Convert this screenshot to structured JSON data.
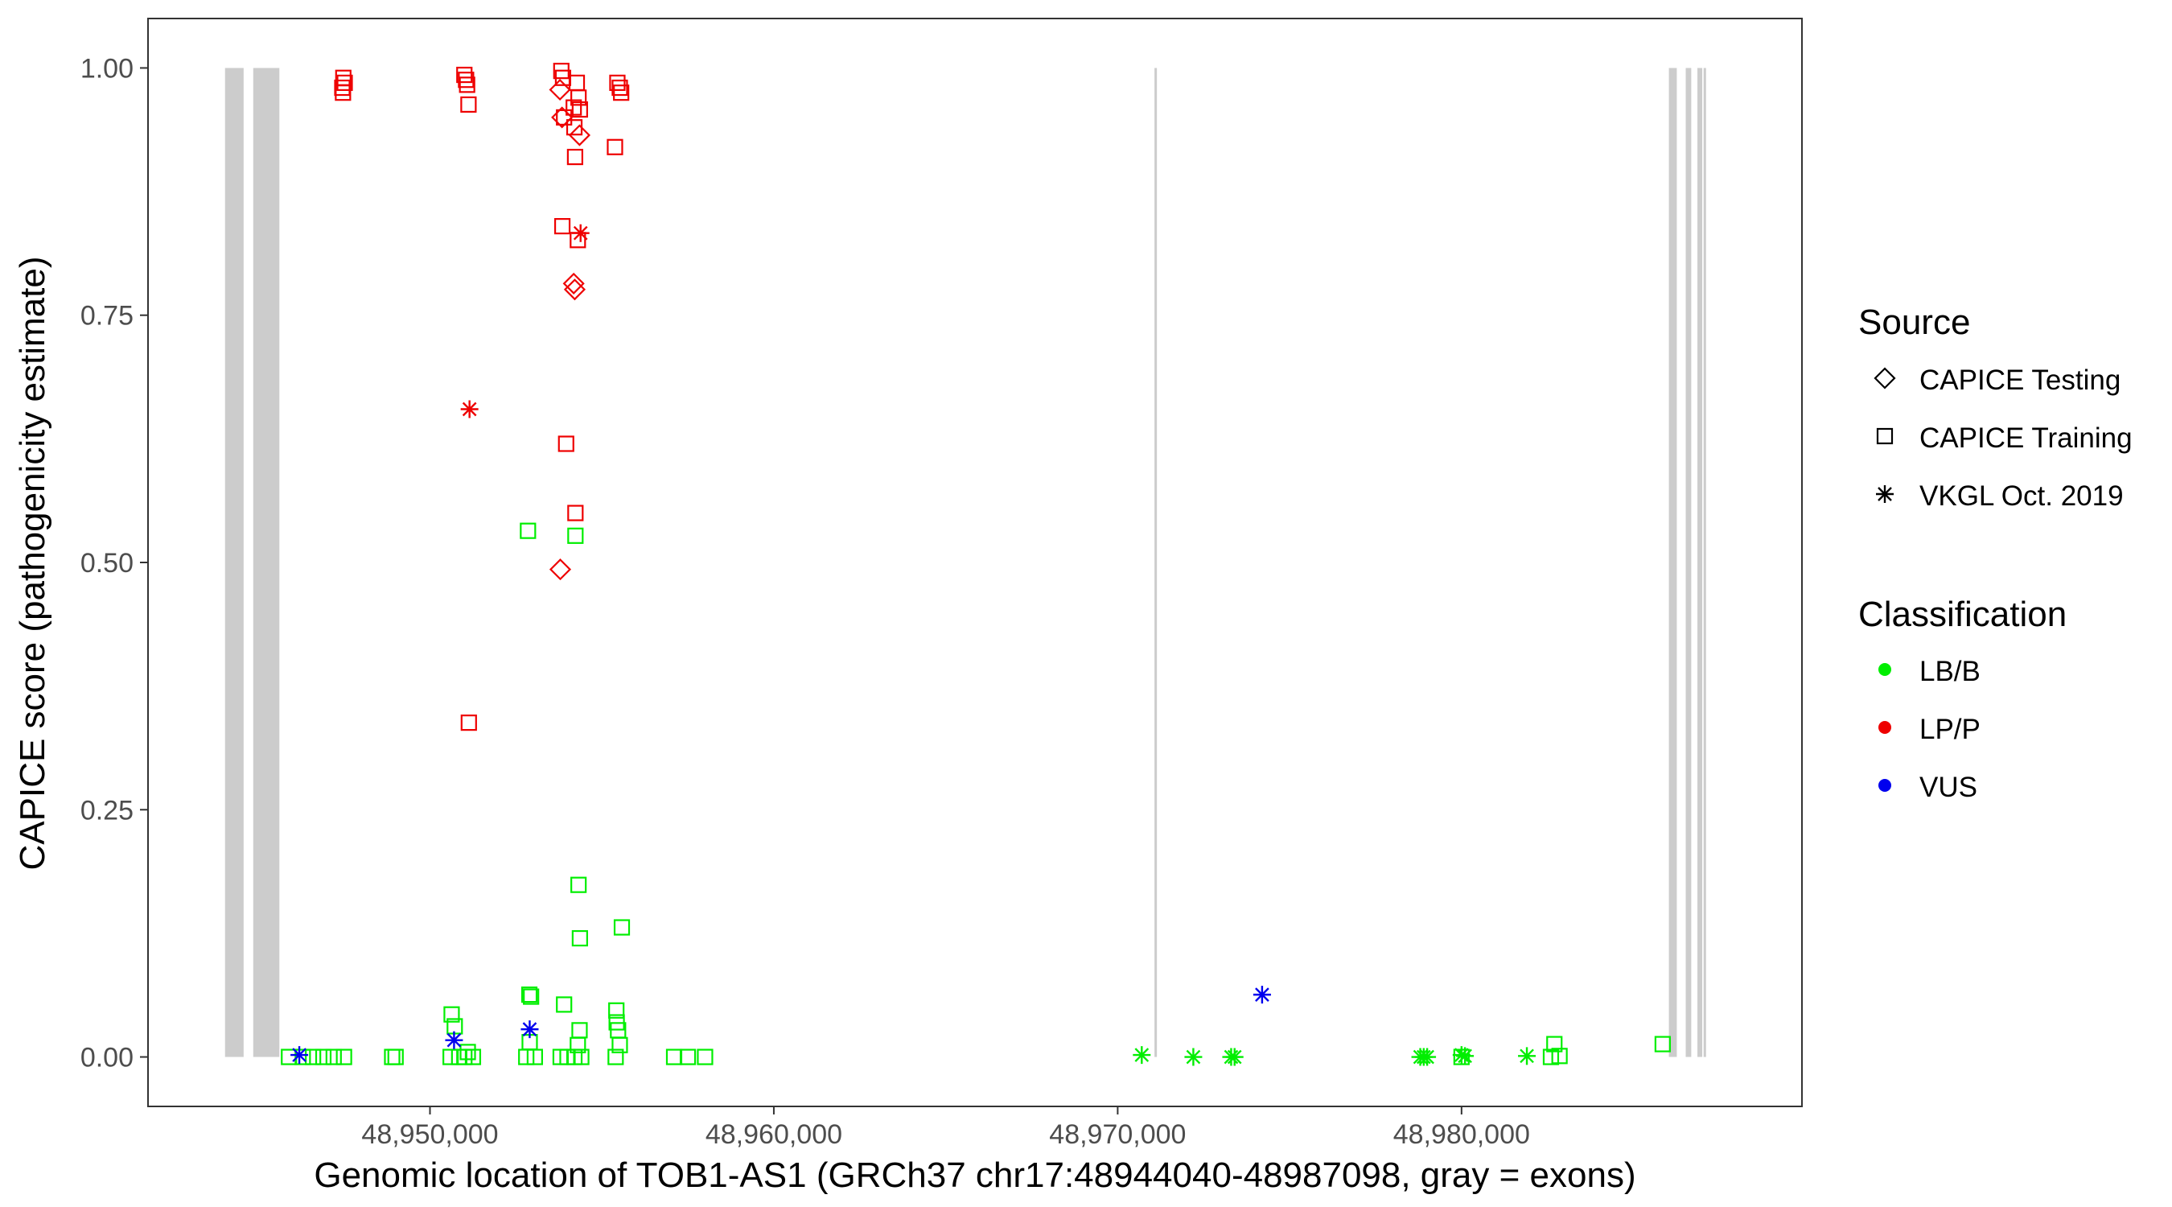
{
  "chart_data": {
    "type": "scatter",
    "title": "",
    "xlabel": "Genomic location of TOB1-AS1 (GRCh37 chr17:48944040-48987098, gray = exons)",
    "ylabel": "CAPICE score (pathogenicity estimate)",
    "xlim": [
      48941800,
      48989900
    ],
    "ylim": [
      -0.05,
      1.05
    ],
    "x_ticks": [
      48950000,
      48960000,
      48970000,
      48980000
    ],
    "x_tick_labels": [
      "48,950,000",
      "48,960,000",
      "48,970,000",
      "48,980,000"
    ],
    "y_ticks": [
      0,
      0.25,
      0.5,
      0.75,
      1
    ],
    "y_tick_labels": [
      "0.00",
      "0.25",
      "0.50",
      "0.75",
      "1.00"
    ],
    "grid": false,
    "exons": [
      [
        48944040,
        48944580
      ],
      [
        48944860,
        48945620
      ],
      [
        48971070,
        48971130
      ],
      [
        48986030,
        48986260
      ],
      [
        48986520,
        48986680
      ],
      [
        48986860,
        48987000
      ],
      [
        48987040,
        48987098
      ]
    ],
    "exon_color": "#cccccc",
    "legend_position": "right",
    "legend": {
      "source_title": "Source",
      "sources": [
        {
          "key": "testing",
          "label": "CAPICE Testing",
          "shape": "diamond"
        },
        {
          "key": "training",
          "label": "CAPICE Training",
          "shape": "square"
        },
        {
          "key": "vkgl",
          "label": "VKGL Oct. 2019",
          "shape": "asterisk"
        }
      ],
      "class_title": "Classification",
      "classes": [
        {
          "key": "LB",
          "label": "LB/B",
          "color": "#00ee00"
        },
        {
          "key": "LP",
          "label": "LP/P",
          "color": "#ee0000"
        },
        {
          "key": "VUS",
          "label": "VUS",
          "color": "#0000ee"
        }
      ]
    },
    "series": [
      {
        "source": "training",
        "class": "LP",
        "points": [
          [
            48947480,
            0.99
          ],
          [
            48947520,
            0.985
          ],
          [
            48947450,
            0.98
          ],
          [
            48947470,
            0.975
          ],
          [
            48951000,
            0.993
          ],
          [
            48951050,
            0.988
          ],
          [
            48951080,
            0.983
          ],
          [
            48951120,
            0.963
          ],
          [
            48953820,
            0.997
          ],
          [
            48953870,
            0.99
          ],
          [
            48953900,
            0.95
          ],
          [
            48954180,
            0.96
          ],
          [
            48954270,
            0.985
          ],
          [
            48954320,
            0.97
          ],
          [
            48954360,
            0.958
          ],
          [
            48954200,
            0.94
          ],
          [
            48954220,
            0.91
          ],
          [
            48955450,
            0.985
          ],
          [
            48955520,
            0.98
          ],
          [
            48955560,
            0.975
          ],
          [
            48955380,
            0.92
          ],
          [
            48953850,
            0.84
          ],
          [
            48954300,
            0.826
          ],
          [
            48953960,
            0.62
          ],
          [
            48954230,
            0.55
          ],
          [
            48951130,
            0.338
          ]
        ]
      },
      {
        "source": "testing",
        "class": "LP",
        "points": [
          [
            48953780,
            0.978
          ],
          [
            48953840,
            0.95
          ],
          [
            48954350,
            0.932
          ],
          [
            48954180,
            0.782
          ],
          [
            48954210,
            0.776
          ],
          [
            48953790,
            0.493
          ]
        ]
      },
      {
        "source": "vkgl",
        "class": "LP",
        "points": [
          [
            48954380,
            0.833
          ],
          [
            48951150,
            0.655
          ]
        ]
      },
      {
        "source": "training",
        "class": "LB",
        "points": [
          [
            48952850,
            0.532
          ],
          [
            48954230,
            0.527
          ],
          [
            48954320,
            0.174
          ],
          [
            48955580,
            0.131
          ],
          [
            48954360,
            0.12
          ],
          [
            48950630,
            0.043
          ],
          [
            48950720,
            0.031
          ],
          [
            48952890,
            0.063
          ],
          [
            48952940,
            0.061
          ],
          [
            48953900,
            0.053
          ],
          [
            48955420,
            0.047
          ],
          [
            48955430,
            0.035
          ],
          [
            48955470,
            0.027
          ],
          [
            48955520,
            0.012
          ],
          [
            48954350,
            0.027
          ],
          [
            48954300,
            0.012
          ],
          [
            48952900,
            0.015
          ],
          [
            48951100,
            0.005
          ],
          [
            48945900,
            0
          ],
          [
            48946300,
            0
          ],
          [
            48946600,
            0
          ],
          [
            48946900,
            0
          ],
          [
            48947200,
            0
          ],
          [
            48947500,
            0
          ],
          [
            48948900,
            0
          ],
          [
            48949000,
            0
          ],
          [
            48950600,
            0
          ],
          [
            48950850,
            0
          ],
          [
            48951000,
            0
          ],
          [
            48951250,
            0
          ],
          [
            48952800,
            0
          ],
          [
            48953050,
            0
          ],
          [
            48953800,
            0
          ],
          [
            48954000,
            0
          ],
          [
            48954200,
            0
          ],
          [
            48954400,
            0
          ],
          [
            48955400,
            0
          ],
          [
            48957100,
            0
          ],
          [
            48957500,
            0
          ],
          [
            48958000,
            0
          ],
          [
            48980000,
            0
          ],
          [
            48982700,
            0.013
          ],
          [
            48982850,
            0.001
          ],
          [
            48982600,
            0
          ],
          [
            48985850,
            0.013
          ]
        ]
      },
      {
        "source": "vkgl",
        "class": "LB",
        "points": [
          [
            48970700,
            0.002
          ],
          [
            48972200,
            0
          ],
          [
            48973300,
            0
          ],
          [
            48973400,
            0
          ],
          [
            48978800,
            0
          ],
          [
            48978900,
            0
          ],
          [
            48979000,
            0
          ],
          [
            48980000,
            0.002
          ],
          [
            48980100,
            0.001
          ],
          [
            48981900,
            0.001
          ]
        ]
      },
      {
        "source": "vkgl",
        "class": "VUS",
        "points": [
          [
            48946200,
            0.002
          ],
          [
            48950700,
            0.017
          ],
          [
            48952900,
            0.028
          ],
          [
            48974200,
            0.063
          ]
        ]
      }
    ]
  }
}
